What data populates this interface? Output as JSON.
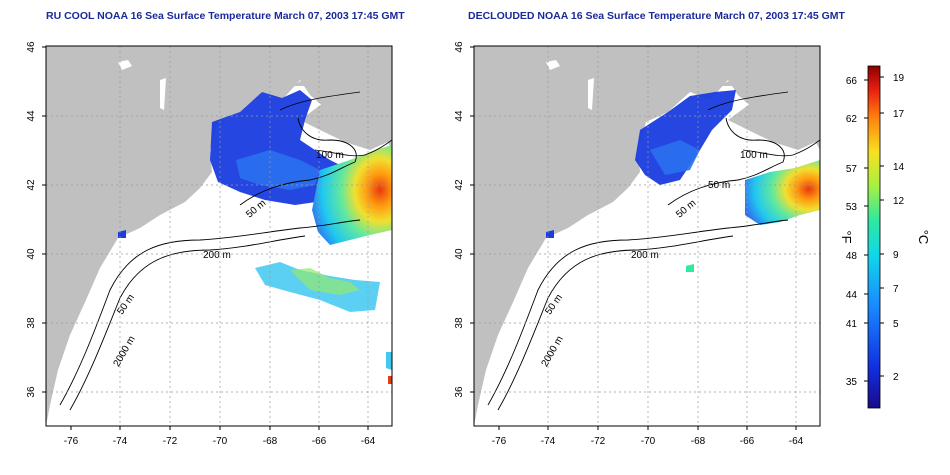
{
  "panels": [
    {
      "title": "RU COOL NOAA 16 Sea Surface Temperature March 07, 2003 17:45 GMT",
      "contour_labels": [
        "100 m",
        "50 m",
        "200 m",
        "50 m",
        "2000 m"
      ]
    },
    {
      "title": "DECLOUDED NOAA 16 Sea Surface Temperature March 07, 2003 17:45 GMT",
      "contour_labels": [
        "100 m",
        "50 m",
        "50 m",
        "200 m",
        "50 m",
        "2000 m"
      ]
    }
  ],
  "lat_ticks": [
    "46",
    "44",
    "42",
    "40",
    "38",
    "36"
  ],
  "lon_ticks": [
    "-76",
    "-74",
    "-72",
    "-70",
    "-68",
    "-66",
    "-64"
  ],
  "colorbar": {
    "unit_f": "°F",
    "unit_c": "°C",
    "f_ticks": [
      "66",
      "62",
      "57",
      "53",
      "48",
      "44",
      "41",
      "35"
    ],
    "c_ticks": [
      "19",
      "17",
      "14",
      "12",
      "9",
      "7",
      "5",
      "2"
    ]
  },
  "colors": {
    "land": "#c0c0c0",
    "ocean": "#ffffff",
    "title": "#1a2a9a"
  }
}
